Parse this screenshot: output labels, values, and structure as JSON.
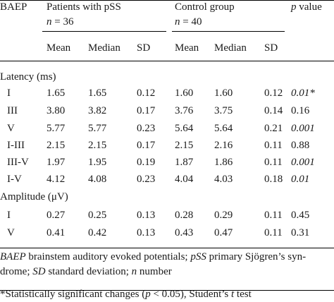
{
  "header": {
    "baep": "BAEP",
    "pss_group": "Patients with pSS",
    "pss_n_label": "n",
    "pss_n_value": " = 36",
    "control_group": "Control group",
    "control_n_label": "n",
    "control_n_value": " = 40",
    "p_label": "p",
    "p_value_label": " value",
    "sub": [
      "Mean",
      "Median",
      "SD",
      "Mean",
      "Median",
      "SD"
    ]
  },
  "sections": [
    {
      "title": "Latency (ms)",
      "rows": [
        {
          "label": "I",
          "values": [
            "1.65",
            "1.65",
            "0.12",
            "1.60",
            "1.60",
            "0.12"
          ],
          "p": "0.01*",
          "p_italic": true
        },
        {
          "label": "III",
          "values": [
            "3.80",
            "3.82",
            "0.17",
            "3.76",
            "3.75",
            "0.14"
          ],
          "p": "0.16",
          "p_italic": false
        },
        {
          "label": "V",
          "values": [
            "5.77",
            "5.77",
            "0.23",
            "5.64",
            "5.64",
            "0.21"
          ],
          "p": "0.001",
          "p_italic": true
        },
        {
          "label": "I-III",
          "values": [
            "2.15",
            "2.15",
            "0.17",
            "2.15",
            "2.16",
            "0.11"
          ],
          "p": "0.88",
          "p_italic": false
        },
        {
          "label": "III-V",
          "values": [
            "1.97",
            "1.95",
            "0.19",
            "1.87",
            "1.86",
            "0.11"
          ],
          "p": "0.001",
          "p_italic": true
        },
        {
          "label": "I-V",
          "values": [
            "4.12",
            "4.08",
            "0.23",
            "4.04",
            "4.03",
            "0.18"
          ],
          "p": "0.01",
          "p_italic": true
        }
      ]
    },
    {
      "title": "Amplitude (μV)",
      "rows": [
        {
          "label": "I",
          "values": [
            "0.27",
            "0.25",
            "0.13",
            "0.28",
            "0.29",
            "0.11"
          ],
          "p": "0.45",
          "p_italic": false
        },
        {
          "label": "V",
          "values": [
            "0.41",
            "0.42",
            "0.13",
            "0.43",
            "0.47",
            "0.11"
          ],
          "p": "0.31",
          "p_italic": false
        }
      ]
    }
  ],
  "footnotes": {
    "line1": [
      {
        "text": "BAEP",
        "italic": true
      },
      {
        "text": " brainstem auditory evoked potentials; ",
        "italic": false
      },
      {
        "text": "pSS",
        "italic": true
      },
      {
        "text": " primary Sjögren’s syn-",
        "italic": false
      }
    ],
    "line2": [
      {
        "text": "drome; ",
        "italic": false
      },
      {
        "text": "SD",
        "italic": true
      },
      {
        "text": " standard deviation; ",
        "italic": false
      },
      {
        "text": "n",
        "italic": true
      },
      {
        "text": " number",
        "italic": false
      }
    ],
    "line3": [
      {
        "text": "*Statistically significant changes (",
        "italic": false
      },
      {
        "text": "p",
        "italic": true
      },
      {
        "text": " < 0.05), Student’s ",
        "italic": false
      },
      {
        "text": "t",
        "italic": true
      },
      {
        "text": " test",
        "italic": false
      }
    ]
  }
}
